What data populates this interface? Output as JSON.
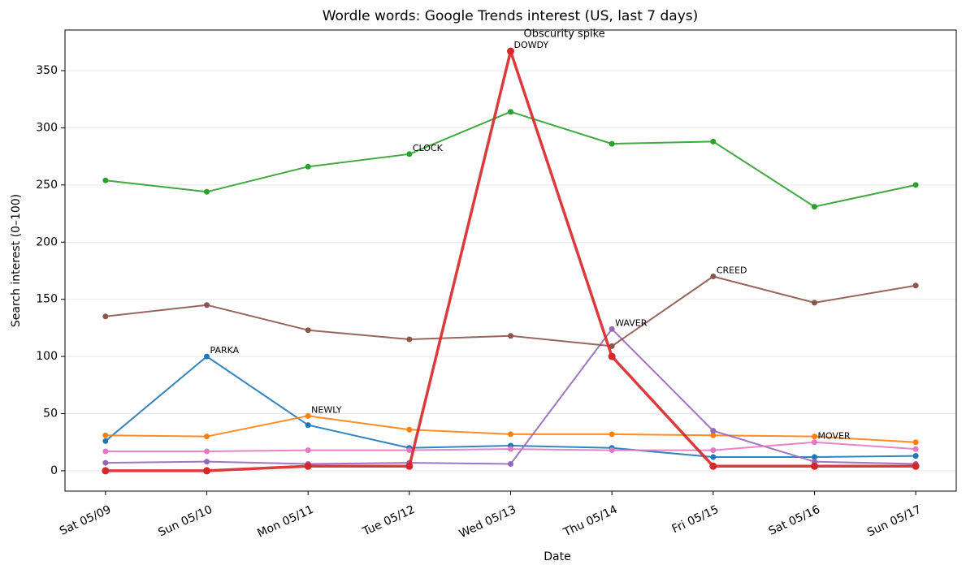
{
  "chart_data": {
    "type": "line",
    "title": "Wordle words: Google Trends interest (US, last 7 days)",
    "xlabel": "Date",
    "ylabel": "Search interest (0–100)",
    "categories": [
      "Sat 05/09",
      "Sun 05/10",
      "Mon 05/11",
      "Tue 05/12",
      "Wed 05/13",
      "Thu 05/14",
      "Fri 05/15",
      "Sat 05/16",
      "Sun 05/17"
    ],
    "series": [
      {
        "color": "#1f77b4",
        "linewidth": 2,
        "values": [
          26,
          100,
          40,
          20,
          22,
          20,
          12,
          12,
          13
        ]
      },
      {
        "color": "#ff7f0e",
        "linewidth": 2,
        "values": [
          31,
          30,
          48,
          36,
          32,
          32,
          31,
          30,
          25
        ]
      },
      {
        "color": "#2ca02c",
        "linewidth": 2,
        "values": [
          254,
          244,
          266,
          277,
          314,
          286,
          288,
          231,
          250
        ]
      },
      {
        "color": "#9467bd",
        "linewidth": 2,
        "values": [
          7,
          8,
          6,
          7,
          6,
          124,
          35,
          8,
          6
        ]
      },
      {
        "color": "#8c564b",
        "linewidth": 2,
        "values": [
          135,
          145,
          123,
          115,
          118,
          109,
          170,
          147,
          162
        ]
      },
      {
        "color": "#e377c2",
        "linewidth": 2,
        "values": [
          17,
          17,
          18,
          18,
          19,
          18,
          18,
          25,
          19
        ]
      },
      {
        "color": "#d62728",
        "linewidth": 3.5,
        "values": [
          0,
          0,
          4,
          4,
          367,
          100,
          4,
          4,
          4
        ]
      }
    ],
    "annotations": [
      {
        "text": "PARKA",
        "x": "Sun 05/10",
        "y": 100
      },
      {
        "text": "NEWLY",
        "x": "Mon 05/11",
        "y": 48
      },
      {
        "text": "CLOCK",
        "x": "Tue 05/12",
        "y": 277
      },
      {
        "text": "DOWDY",
        "x": "Wed 05/13",
        "y": 367
      },
      {
        "text": "WAVER",
        "x": "Thu 05/14",
        "y": 124
      },
      {
        "text": "CREED",
        "x": "Fri 05/15",
        "y": 170
      },
      {
        "text": "MOVER",
        "x": "Sat 05/16",
        "y": 25
      }
    ],
    "spike_note": {
      "text": "Obscurity spike",
      "x": "Wed 05/13",
      "y": 367
    },
    "ylim": [
      -17.8,
      385.5
    ],
    "yticks": [
      0,
      50,
      100,
      150,
      200,
      250,
      300,
      350
    ],
    "grid": true
  }
}
